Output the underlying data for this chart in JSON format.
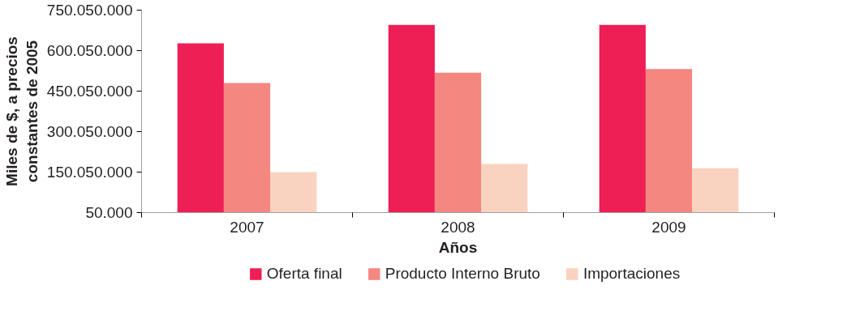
{
  "chart_data": {
    "type": "bar",
    "xlabel": "Años",
    "ylabel": "Miles de $, a precios\nconstantes de 2005",
    "categories": [
      "2007",
      "2008",
      "2009"
    ],
    "series": [
      {
        "name": "Oferta final",
        "color": "#ed1f55",
        "values": [
          627000000,
          695000000,
          695000000
        ]
      },
      {
        "name": "Producto Interno Bruto",
        "color": "#f4877f",
        "values": [
          480000000,
          518000000,
          532000000
        ]
      },
      {
        "name": "Importaciones",
        "color": "#fad2c0",
        "values": [
          150000000,
          180000000,
          164000000
        ]
      }
    ],
    "ylim": [
      50000,
      750050000
    ],
    "yticks": [
      {
        "value": 50000,
        "label": "50.000"
      },
      {
        "value": 150050000,
        "label": "150.050.000"
      },
      {
        "value": 300050000,
        "label": "300.050.000"
      },
      {
        "value": 450050000,
        "label": "450.050.000"
      },
      {
        "value": 600050000,
        "label": "600.050.000"
      },
      {
        "value": 750050000,
        "label": "750.050.000"
      }
    ],
    "grid": false,
    "legend": "bottom"
  }
}
